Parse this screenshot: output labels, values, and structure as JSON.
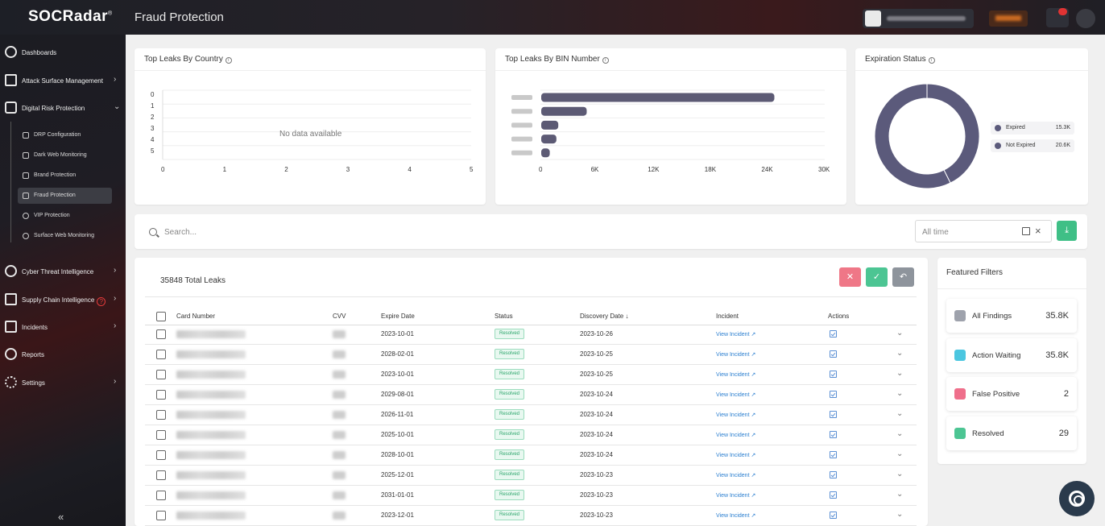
{
  "header": {
    "brand": "SOCRadar",
    "brand_mark": "®",
    "page_title": "Fraud Protection"
  },
  "sidebar": {
    "items": [
      {
        "label": "Dashboards"
      },
      {
        "label": "Attack Surface Management"
      },
      {
        "label": "Digital Risk Protection"
      },
      {
        "label": "Cyber Threat Intelligence"
      },
      {
        "label": "Supply Chain Intelligence"
      },
      {
        "label": "Incidents"
      },
      {
        "label": "Reports"
      },
      {
        "label": "Settings"
      }
    ],
    "drp_sub": [
      {
        "label": "DRP Configuration"
      },
      {
        "label": "Dark Web Monitoring"
      },
      {
        "label": "Brand Protection"
      },
      {
        "label": "Fraud Protection",
        "active": true
      },
      {
        "label": "VIP Protection"
      },
      {
        "label": "Surface Web Monitoring"
      }
    ],
    "collapse_icon": "«"
  },
  "charts": {
    "country": {
      "title": "Top Leaks By Country",
      "no_data": "No data available",
      "y_ticks": [
        "0",
        "1",
        "2",
        "3",
        "4",
        "5"
      ],
      "x_ticks": [
        "0",
        "1",
        "2",
        "3",
        "4",
        "5"
      ]
    },
    "bin": {
      "title": "Top Leaks By BIN Number",
      "x_ticks": [
        "0",
        "6K",
        "12K",
        "18K",
        "24K",
        "30K"
      ]
    },
    "expiration": {
      "title": "Expiration Status",
      "legend": [
        {
          "label": "Expired",
          "value": "15.3K"
        },
        {
          "label": "Not Expired",
          "value": "20.6K"
        }
      ]
    }
  },
  "chart_data": [
    {
      "type": "bar",
      "title": "Top Leaks By Country",
      "categories": [],
      "values": [],
      "xlim": [
        0,
        5
      ]
    },
    {
      "type": "bar",
      "title": "Top Leaks By BIN Number",
      "orientation": "horizontal",
      "categories": [
        "",
        "",
        "",
        "",
        ""
      ],
      "values": [
        24600,
        4800,
        1800,
        1600,
        900
      ],
      "xlim": [
        0,
        30000
      ],
      "color": "#5c5a74"
    },
    {
      "type": "pie",
      "title": "Expiration Status",
      "donut": true,
      "categories": [
        "Expired",
        "Not Expired"
      ],
      "values": [
        15300,
        20600
      ],
      "colors": [
        "#5b5a7b",
        "#5b5a7b"
      ],
      "legend": "right"
    }
  ],
  "search": {
    "placeholder": "Search...",
    "time_filter": "All time"
  },
  "table": {
    "total": "35848 Total Leaks",
    "columns": [
      "Card Number",
      "CVV",
      "Expire Date",
      "Status",
      "Discovery Date",
      "Incident",
      "Actions"
    ],
    "sort_arrow": "↓",
    "rows": [
      {
        "expire": "2023-10-01",
        "status": "Resolved",
        "discovery": "2023-10-26",
        "incident": "View Incident"
      },
      {
        "expire": "2028-02-01",
        "status": "Resolved",
        "discovery": "2023-10-25",
        "incident": "View Incident"
      },
      {
        "expire": "2023-10-01",
        "status": "Resolved",
        "discovery": "2023-10-25",
        "incident": "View Incident"
      },
      {
        "expire": "2029-08-01",
        "status": "Resolved",
        "discovery": "2023-10-24",
        "incident": "View Incident"
      },
      {
        "expire": "2026-11-01",
        "status": "Resolved",
        "discovery": "2023-10-24",
        "incident": "View Incident"
      },
      {
        "expire": "2025-10-01",
        "status": "Resolved",
        "discovery": "2023-10-24",
        "incident": "View Incident"
      },
      {
        "expire": "2028-10-01",
        "status": "Resolved",
        "discovery": "2023-10-24",
        "incident": "View Incident"
      },
      {
        "expire": "2025-12-01",
        "status": "Resolved",
        "discovery": "2023-10-23",
        "incident": "View Incident"
      },
      {
        "expire": "2031-01-01",
        "status": "Resolved",
        "discovery": "2023-10-23",
        "incident": "View Incident"
      },
      {
        "expire": "2023-12-01",
        "status": "Resolved",
        "discovery": "2023-10-23",
        "incident": "View Incident"
      }
    ]
  },
  "featured_filters": {
    "title": "Featured Filters",
    "items": [
      {
        "label": "All Findings",
        "value": "35.8K",
        "color": "#9ea2ac"
      },
      {
        "label": "Action Waiting",
        "value": "35.8K",
        "color": "#4bc6e0"
      },
      {
        "label": "False Positive",
        "value": "2",
        "color": "#ef6f8b"
      },
      {
        "label": "Resolved",
        "value": "29",
        "color": "#4cc593"
      }
    ]
  },
  "colors": {
    "accent_green": "#3fbf86",
    "danger_pink": "#ef7787",
    "muted_gray": "#8e949c",
    "link_blue": "#2b7fd0"
  }
}
